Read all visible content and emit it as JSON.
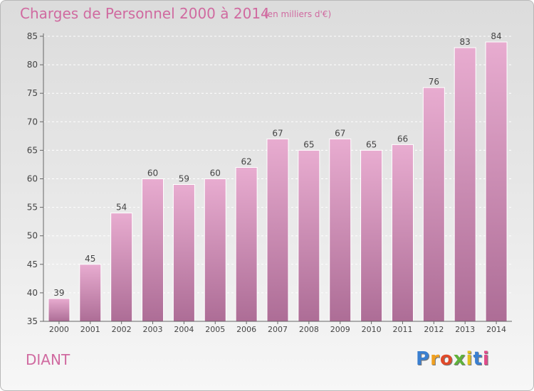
{
  "title": "Charges de Personnel 2000 à 2014",
  "subtitle": "(en milliers d'€)",
  "commune": "DIANT",
  "logo_text": "Proxiti",
  "colors": {
    "accent": "#d06aa0",
    "bar_top": "#e8acd0",
    "bar_bottom": "#ad6d96"
  },
  "chart_data": {
    "type": "bar",
    "title": "Charges de Personnel 2000 à 2014",
    "subtitle": "(en milliers d'€)",
    "categories": [
      "2000",
      "2001",
      "2002",
      "2003",
      "2004",
      "2005",
      "2006",
      "2007",
      "2008",
      "2009",
      "2010",
      "2011",
      "2012",
      "2013",
      "2014"
    ],
    "values": [
      39,
      45,
      54,
      60,
      59,
      60,
      62,
      67,
      65,
      67,
      65,
      66,
      76,
      83,
      84
    ],
    "ylim": [
      35,
      85
    ],
    "yticks": [
      35,
      40,
      45,
      50,
      55,
      60,
      65,
      70,
      75,
      80,
      85
    ],
    "grid": true,
    "legend": "none"
  }
}
